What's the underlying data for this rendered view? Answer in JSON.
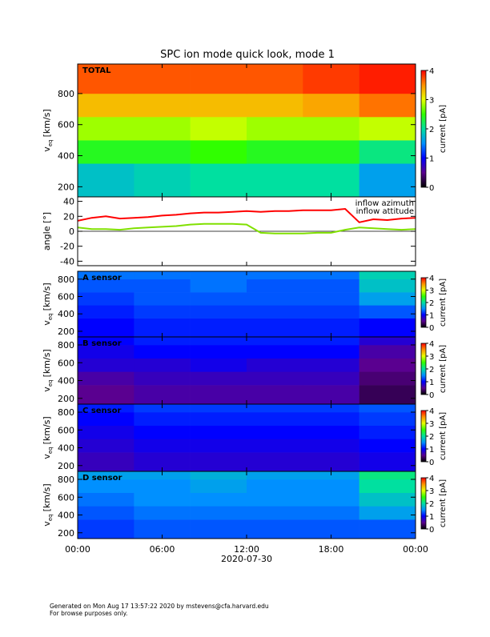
{
  "footer": [
    "Generated on Mon Aug 17 13:57:22 2020 by mstevens@cfa.harvard.edu",
    "For browse purposes only."
  ],
  "chart_data": [
    {
      "type": "heatmap",
      "title": "SPC ion mode quick look, mode 1",
      "label": "TOTAL",
      "ylabel": [
        "v",
        "eq",
        "[km/s]"
      ],
      "xlim": [
        0,
        24
      ],
      "ylim": [
        135,
        990
      ],
      "yticks": [
        200,
        400,
        600,
        800
      ],
      "x_bins": [
        0,
        4,
        8,
        12,
        16,
        20,
        24
      ],
      "y_bins": [
        135,
        350,
        500,
        650,
        800,
        990
      ],
      "values": [
        [
          1.8,
          1.9,
          2.0,
          2.0,
          2.0,
          1.6
        ],
        [
          2.4,
          2.4,
          2.5,
          2.4,
          2.4,
          2.1
        ],
        [
          2.8,
          2.8,
          2.9,
          2.8,
          2.8,
          2.9
        ],
        [
          3.3,
          3.3,
          3.3,
          3.3,
          3.4,
          3.6
        ],
        [
          3.7,
          3.7,
          3.7,
          3.7,
          3.8,
          3.9
        ]
      ],
      "zlim": [
        0,
        4
      ],
      "zticks": [
        0,
        1,
        2,
        3,
        4
      ],
      "zlabel": "current [pA]",
      "colormap": [
        "#000000",
        "#5a0090",
        "#0000ff",
        "#0090ff",
        "#00e0a0",
        "#30ff00",
        "#e8ff00",
        "#ff9000",
        "#ff0000"
      ]
    },
    {
      "type": "line",
      "ylabel": "angle [°]",
      "xlim": [
        0,
        24
      ],
      "ylim": [
        -46,
        46
      ],
      "yticks": [
        -40,
        -20,
        0,
        20,
        40
      ],
      "x": [
        0,
        1,
        2,
        3,
        4,
        5,
        6,
        7,
        8,
        9,
        10,
        11,
        12,
        13,
        14,
        15,
        16,
        17,
        18,
        19,
        20,
        21,
        22,
        23,
        24
      ],
      "series": [
        {
          "name": "inflow azimuth",
          "color": "#ff0000",
          "values": [
            14,
            18,
            20,
            17,
            18,
            19,
            21,
            22,
            24,
            25,
            25,
            26,
            27,
            26,
            27,
            27,
            28,
            28,
            28,
            30,
            12,
            16,
            15,
            17,
            18
          ]
        },
        {
          "name": "inflow attitude",
          "color": "#80e000",
          "values": [
            5,
            3,
            3,
            2,
            4,
            5,
            6,
            7,
            9,
            10,
            10,
            10,
            9,
            -2,
            -3,
            -3,
            -3,
            -2,
            -2,
            2,
            5,
            4,
            3,
            2,
            3
          ]
        }
      ]
    },
    {
      "type": "heatmap",
      "label": "A sensor",
      "ylabel": [
        "v",
        "eq",
        "[km/s]"
      ],
      "xlim": [
        0,
        24
      ],
      "ylim": [
        135,
        890
      ],
      "yticks": [
        200,
        400,
        600,
        800
      ],
      "x_bins": [
        0,
        4,
        8,
        12,
        16,
        20,
        24
      ],
      "y_bins": [
        135,
        350,
        500,
        650,
        800,
        890
      ],
      "values": [
        [
          1.0,
          1.1,
          1.1,
          1.1,
          1.1,
          1.0
        ],
        [
          1.1,
          1.2,
          1.2,
          1.2,
          1.2,
          1.3
        ],
        [
          1.2,
          1.3,
          1.3,
          1.3,
          1.3,
          1.6
        ],
        [
          1.3,
          1.3,
          1.4,
          1.3,
          1.3,
          1.8
        ],
        [
          1.4,
          1.4,
          1.4,
          1.4,
          1.4,
          1.9
        ]
      ],
      "zlim": [
        0,
        4
      ],
      "zticks": [
        0,
        1,
        2,
        3,
        4
      ],
      "zlabel": "current [pA]",
      "colormap": [
        "#000000",
        "#5a0090",
        "#0000ff",
        "#0090ff",
        "#00e0a0",
        "#30ff00",
        "#e8ff00",
        "#ff9000",
        "#ff0000"
      ]
    },
    {
      "type": "heatmap",
      "label": "B sensor",
      "ylabel": [
        "v",
        "eq",
        "[km/s]"
      ],
      "xlim": [
        0,
        24
      ],
      "ylim": [
        135,
        890
      ],
      "yticks": [
        200,
        400,
        600,
        800
      ],
      "x_bins": [
        0,
        4,
        8,
        12,
        16,
        20,
        24
      ],
      "y_bins": [
        135,
        350,
        500,
        650,
        800,
        890
      ],
      "values": [
        [
          0.5,
          0.6,
          0.6,
          0.6,
          0.6,
          0.3
        ],
        [
          0.6,
          0.7,
          0.7,
          0.7,
          0.7,
          0.4
        ],
        [
          0.8,
          0.8,
          0.9,
          0.8,
          0.8,
          0.5
        ],
        [
          0.9,
          1.0,
          1.0,
          1.0,
          1.0,
          0.6
        ],
        [
          1.0,
          1.1,
          1.1,
          1.1,
          1.1,
          0.8
        ]
      ],
      "zlim": [
        0,
        4
      ],
      "zticks": [
        0,
        1,
        2,
        3,
        4
      ],
      "zlabel": "current [pA]",
      "colormap": [
        "#000000",
        "#5a0090",
        "#0000ff",
        "#0090ff",
        "#00e0a0",
        "#30ff00",
        "#e8ff00",
        "#ff9000",
        "#ff0000"
      ]
    },
    {
      "type": "heatmap",
      "label": "C sensor",
      "ylabel": [
        "v",
        "eq",
        "[km/s]"
      ],
      "xlim": [
        0,
        24
      ],
      "ylim": [
        135,
        890
      ],
      "yticks": [
        200,
        400,
        600,
        800
      ],
      "x_bins": [
        0,
        4,
        8,
        12,
        16,
        20,
        24
      ],
      "y_bins": [
        135,
        350,
        500,
        650,
        800,
        890
      ],
      "values": [
        [
          0.7,
          0.8,
          0.8,
          0.8,
          0.8,
          0.9
        ],
        [
          0.8,
          0.9,
          0.9,
          0.9,
          0.9,
          1.0
        ],
        [
          0.9,
          1.0,
          1.0,
          1.0,
          1.0,
          1.1
        ],
        [
          1.0,
          1.1,
          1.1,
          1.1,
          1.1,
          1.2
        ],
        [
          1.1,
          1.2,
          1.2,
          1.2,
          1.2,
          1.3
        ]
      ],
      "zlim": [
        0,
        4
      ],
      "zticks": [
        0,
        1,
        2,
        3,
        4
      ],
      "zlabel": "current [pA]",
      "colormap": [
        "#000000",
        "#5a0090",
        "#0000ff",
        "#0090ff",
        "#00e0a0",
        "#30ff00",
        "#e8ff00",
        "#ff9000",
        "#ff0000"
      ]
    },
    {
      "type": "heatmap",
      "label": "D sensor",
      "ylabel": [
        "v",
        "eq",
        "[km/s]"
      ],
      "xlim": [
        0,
        24
      ],
      "ylim": [
        135,
        890
      ],
      "yticks": [
        200,
        400,
        600,
        800
      ],
      "x_bins": [
        0,
        4,
        8,
        12,
        16,
        20,
        24
      ],
      "y_bins": [
        135,
        350,
        500,
        650,
        800,
        890
      ],
      "values": [
        [
          1.2,
          1.3,
          1.3,
          1.3,
          1.3,
          1.3
        ],
        [
          1.3,
          1.4,
          1.4,
          1.4,
          1.4,
          1.6
        ],
        [
          1.4,
          1.5,
          1.5,
          1.5,
          1.5,
          1.8
        ],
        [
          1.5,
          1.5,
          1.6,
          1.5,
          1.5,
          2.0
        ],
        [
          1.6,
          1.6,
          1.7,
          1.6,
          1.6,
          2.1
        ]
      ],
      "zlim": [
        0,
        4
      ],
      "zticks": [
        0,
        1,
        2,
        3,
        4
      ],
      "zlabel": "current [pA]",
      "colormap": [
        "#000000",
        "#5a0090",
        "#0000ff",
        "#0090ff",
        "#00e0a0",
        "#30ff00",
        "#e8ff00",
        "#ff9000",
        "#ff0000"
      ],
      "xlabel": "2020-07-30",
      "xticks": [
        {
          "value": 0,
          "label": "00:00"
        },
        {
          "value": 6,
          "label": "06:00"
        },
        {
          "value": 12,
          "label": "12:00"
        },
        {
          "value": 18,
          "label": "18:00"
        },
        {
          "value": 24,
          "label": "00:00"
        }
      ]
    }
  ]
}
